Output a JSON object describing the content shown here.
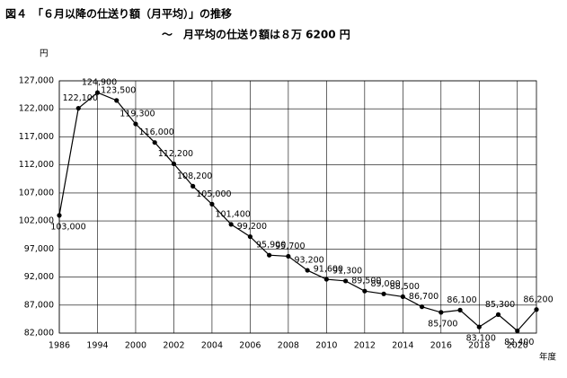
{
  "chart_data": {
    "type": "line",
    "title": "図４　「６月以降の仕送り額（月平均）」の推移",
    "subtitle": "～　月平均の仕送り額は８万 6200 円",
    "y_unit": "円",
    "x_unit": "年度",
    "categories": [
      "1986",
      null,
      "1994",
      null,
      "2000",
      null,
      "2002",
      null,
      "2004",
      null,
      "2006",
      null,
      "2008",
      null,
      "2010",
      null,
      "2012",
      null,
      "2014",
      null,
      "2016",
      null,
      "2018",
      null,
      "2020",
      null
    ],
    "series": [
      {
        "color": "#000000",
        "values": [
          103000,
          122100,
          124900,
          123500,
          119300,
          116000,
          112200,
          108200,
          105000,
          101400,
          99200,
          95900,
          95700,
          93200,
          91600,
          91300,
          89500,
          89000,
          88500,
          86700,
          85700,
          86100,
          83100,
          85300,
          82400,
          86200
        ],
        "value_labels": [
          "103,000",
          "122,100",
          "124,900",
          "123,500",
          "119,300",
          "116,000",
          "112,200",
          "108,200",
          "105,000",
          "101,400",
          "99,200",
          "95,900",
          "95,700",
          "93,200",
          "91,600",
          "91,300",
          "89,500",
          "89,000",
          "88,500",
          "86,700",
          "85,700",
          "86,100",
          "83,100",
          "85,300",
          "82,400",
          "86,200"
        ]
      }
    ],
    "ylim": [
      82000,
      127000
    ],
    "yticks": [
      {
        "value": 82000,
        "label": "82,000"
      },
      {
        "value": 87000,
        "label": "87,000"
      },
      {
        "value": 92000,
        "label": "92,000"
      },
      {
        "value": 97000,
        "label": "97,000"
      },
      {
        "value": 102000,
        "label": "102,000"
      },
      {
        "value": 107000,
        "label": "107,000"
      },
      {
        "value": 112000,
        "label": "112,000"
      },
      {
        "value": 117000,
        "label": "117,000"
      },
      {
        "value": 122000,
        "label": "122,000"
      },
      {
        "value": 127000,
        "label": "127,000"
      }
    ],
    "grid": true
  }
}
